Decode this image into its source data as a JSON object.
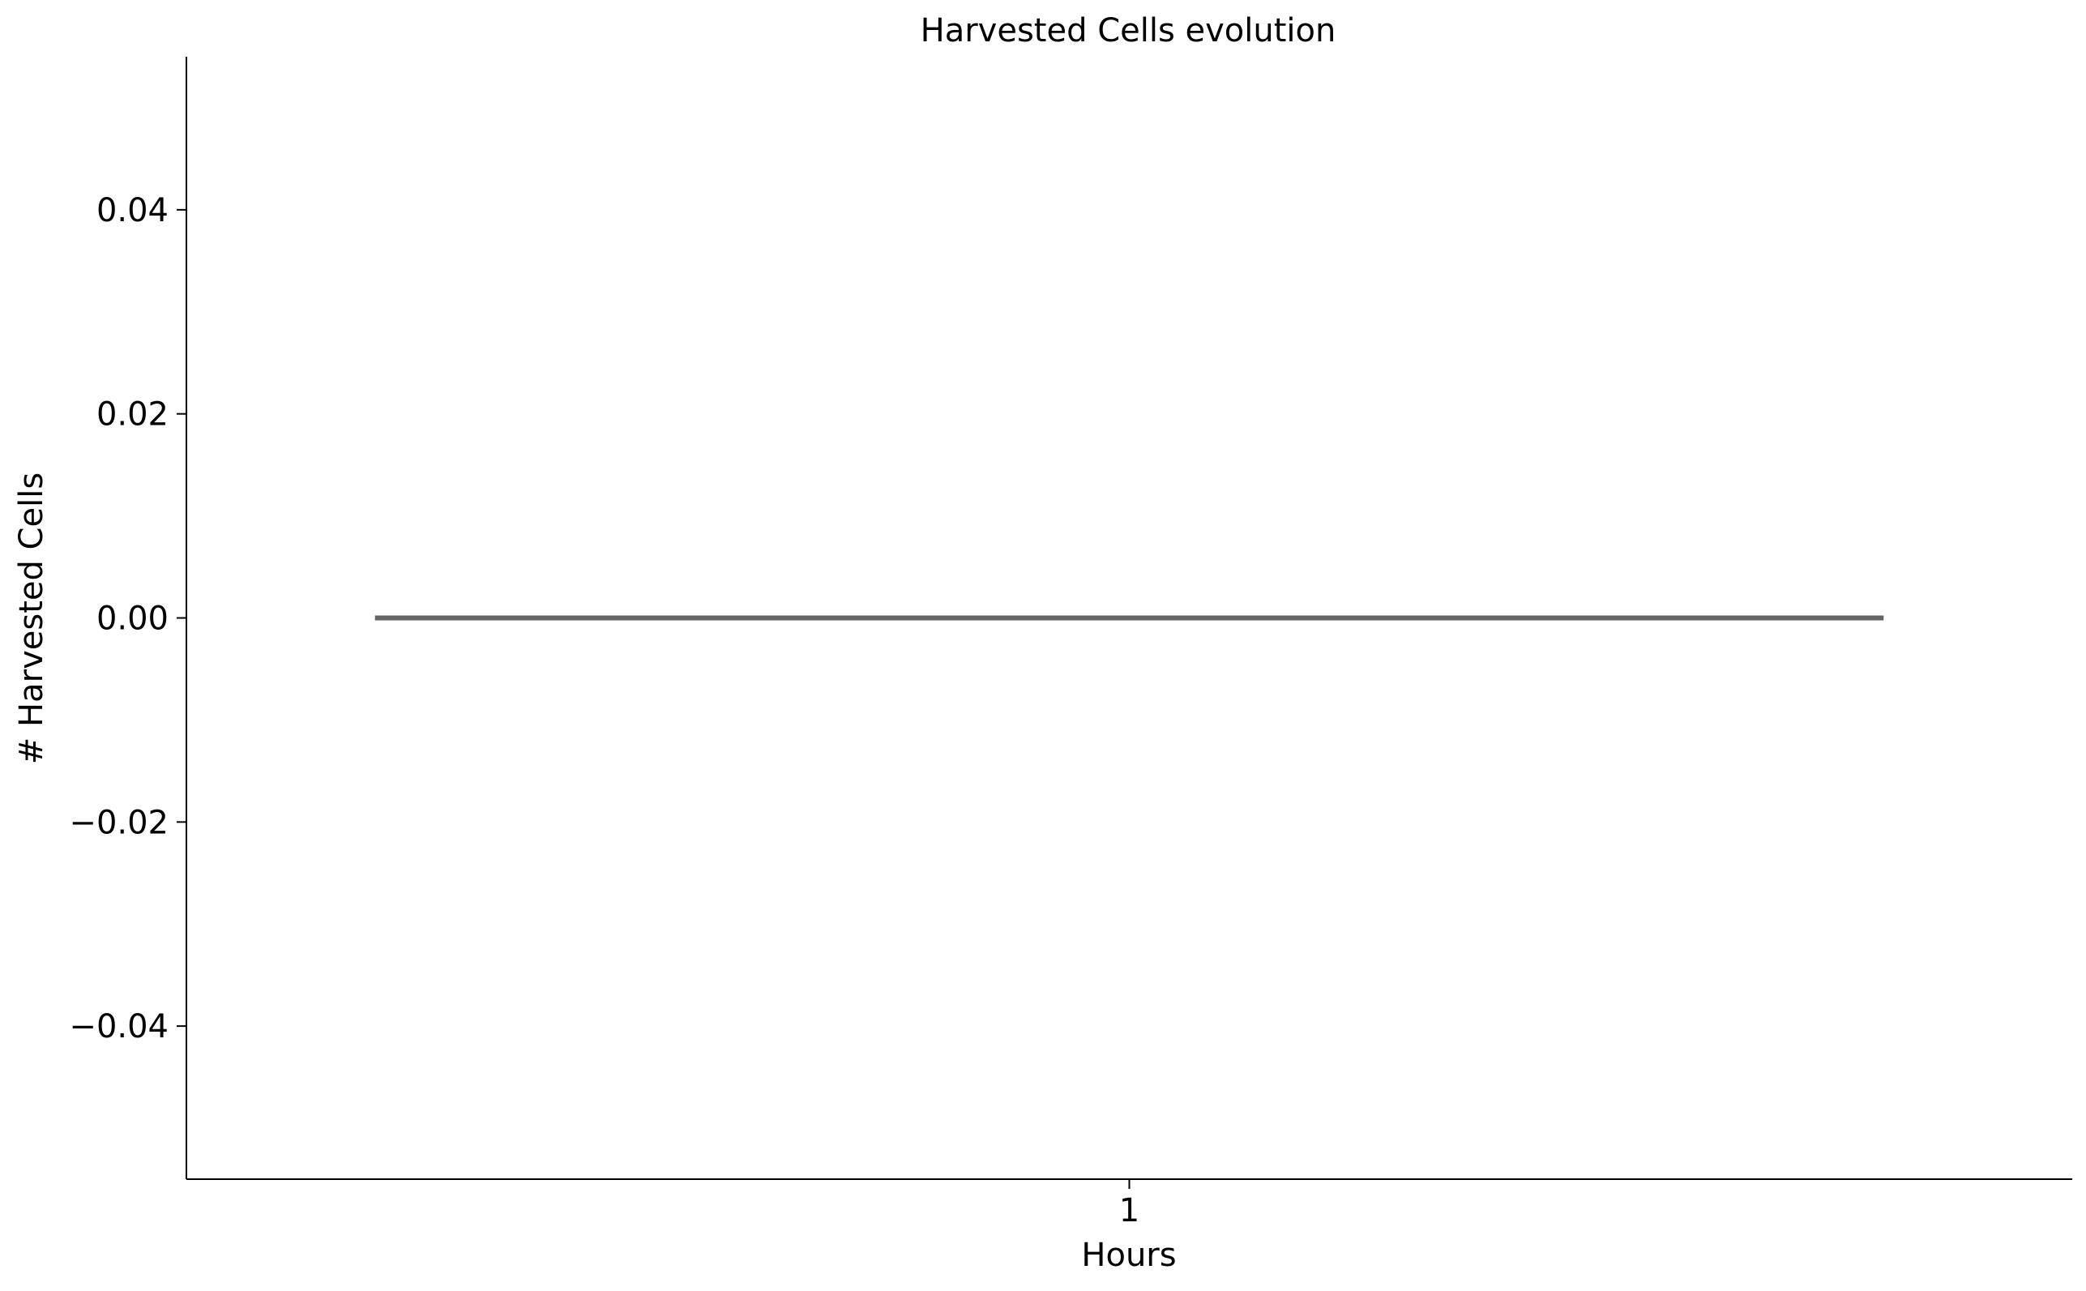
{
  "chart_data": {
    "type": "bar",
    "title": "Harvested Cells evolution",
    "xlabel": "Hours",
    "ylabel": "# Harvested Cells",
    "categories": [
      "1"
    ],
    "values": [
      0.0
    ],
    "ylim": [
      -0.055,
      0.055
    ],
    "yticks": [
      -0.04,
      -0.02,
      0.0,
      0.02,
      0.04
    ],
    "ytick_labels": [
      "−0.04",
      "−0.02",
      "0.00",
      "0.02",
      "0.04"
    ],
    "grid": false,
    "legend": "none",
    "colors": {
      "bar": "#636363",
      "axis": "#000000",
      "background": "#ffffff"
    }
  }
}
